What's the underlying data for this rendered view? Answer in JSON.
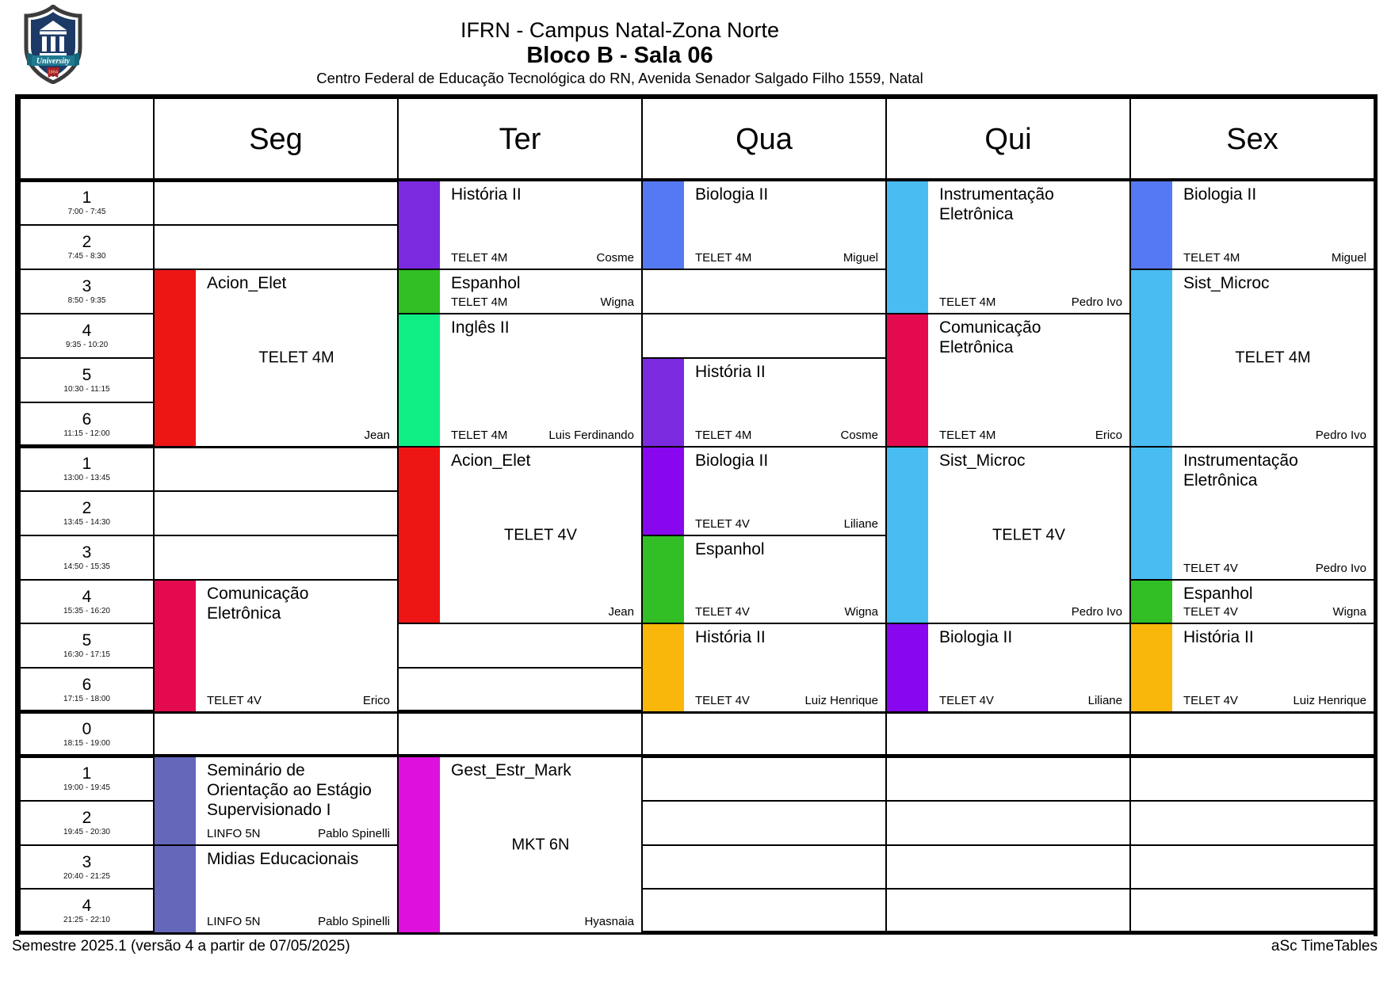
{
  "header": {
    "title": "IFRN - Campus Natal-Zona Norte",
    "subtitle": "Bloco B - Sala 06",
    "address": "Centro Federal de Educação Tecnológica do RN, Avenida Senador Salgado Filho 1559, Natal",
    "logo": {
      "banner": "University",
      "year": "1864"
    }
  },
  "footer": {
    "left": "Semestre 2025.1 (versão 4 a partir de 07/05/2025)",
    "right": "aSc TimeTables"
  },
  "timetable": {
    "days": [
      "Seg",
      "Ter",
      "Qua",
      "Qui",
      "Sex"
    ],
    "periods": [
      {
        "num": "1",
        "time": "7:00 - 7:45"
      },
      {
        "num": "2",
        "time": "7:45 - 8:30"
      },
      {
        "num": "3",
        "time": "8:50 - 9:35"
      },
      {
        "num": "4",
        "time": "9:35 - 10:20"
      },
      {
        "num": "5",
        "time": "10:30 - 11:15"
      },
      {
        "num": "6",
        "time": "11:15 - 12:00"
      },
      {
        "num": "1",
        "time": "13:00 - 13:45"
      },
      {
        "num": "2",
        "time": "13:45 - 14:30"
      },
      {
        "num": "3",
        "time": "14:50 - 15:35"
      },
      {
        "num": "4",
        "time": "15:35 - 16:20"
      },
      {
        "num": "5",
        "time": "16:30 - 17:15"
      },
      {
        "num": "6",
        "time": "17:15 - 18:00"
      },
      {
        "num": "0",
        "time": "18:15 - 19:00"
      },
      {
        "num": "1",
        "time": "19:00 - 19:45"
      },
      {
        "num": "2",
        "time": "19:45 - 20:30"
      },
      {
        "num": "3",
        "time": "20:40 - 21:25"
      },
      {
        "num": "4",
        "time": "21:25 - 22:10"
      }
    ],
    "colors": {
      "red": "#ee1515",
      "crimson": "#e40a4f",
      "slate": "#6567bb",
      "magenta": "#dd10dd",
      "purple": "#7b2ae0",
      "green": "#31bf25",
      "spring": "#0eee85",
      "royal": "#5579f2",
      "sky": "#49bcf2",
      "violet": "#8807ef",
      "amber": "#f8b70a"
    },
    "cards": [
      {
        "day": 0,
        "row": 2,
        "span": 4,
        "color": "red",
        "title": "Acion_Elet",
        "code": "TELET 4M",
        "teacher": "Jean",
        "layout": "center"
      },
      {
        "day": 0,
        "row": 9,
        "span": 3,
        "color": "crimson",
        "title": "Comunicação Eletrônica",
        "code": "TELET 4V",
        "teacher": "Erico",
        "layout": "bottom"
      },
      {
        "day": 0,
        "row": 13,
        "span": 2,
        "color": "slate",
        "title": "Seminário de Orientação ao Estágio Supervisionado I",
        "code": "LINFO 5N",
        "teacher": "Pablo Spinelli",
        "layout": "bottom"
      },
      {
        "day": 0,
        "row": 15,
        "span": 2,
        "color": "slate",
        "title": "Midias Educacionais",
        "code": "LINFO 5N",
        "teacher": "Pablo Spinelli",
        "layout": "bottom"
      },
      {
        "day": 1,
        "row": 0,
        "span": 2,
        "color": "purple",
        "title": "História II",
        "code": "TELET 4M",
        "teacher": "Cosme",
        "layout": "bottom"
      },
      {
        "day": 1,
        "row": 2,
        "span": 1,
        "color": "green",
        "title": "Espanhol",
        "code": "TELET 4M",
        "teacher": "Wigna",
        "layout": "bottom"
      },
      {
        "day": 1,
        "row": 3,
        "span": 3,
        "color": "spring",
        "title": "Inglês II",
        "code": "TELET 4M",
        "teacher": "Luis Ferdinando",
        "layout": "bottom"
      },
      {
        "day": 1,
        "row": 6,
        "span": 4,
        "color": "red",
        "title": "Acion_Elet",
        "code": "TELET 4V",
        "teacher": "Jean",
        "layout": "center"
      },
      {
        "day": 1,
        "row": 13,
        "span": 4,
        "color": "magenta",
        "title": "Gest_Estr_Mark",
        "code": "MKT 6N",
        "teacher": "Hyasnaia",
        "layout": "center"
      },
      {
        "day": 2,
        "row": 0,
        "span": 2,
        "color": "royal",
        "title": "Biologia II",
        "code": "TELET 4M",
        "teacher": "Miguel",
        "layout": "bottom"
      },
      {
        "day": 2,
        "row": 4,
        "span": 2,
        "color": "purple",
        "title": "História II",
        "code": "TELET 4M",
        "teacher": "Cosme",
        "layout": "bottom"
      },
      {
        "day": 2,
        "row": 6,
        "span": 2,
        "color": "violet",
        "title": "Biologia II",
        "code": "TELET 4V",
        "teacher": "Liliane",
        "layout": "bottom"
      },
      {
        "day": 2,
        "row": 8,
        "span": 2,
        "color": "green",
        "title": "Espanhol",
        "code": "TELET 4V",
        "teacher": "Wigna",
        "layout": "bottom"
      },
      {
        "day": 2,
        "row": 10,
        "span": 2,
        "color": "amber",
        "title": "História II",
        "code": "TELET 4V",
        "teacher": "Luiz Henrique",
        "layout": "bottom"
      },
      {
        "day": 3,
        "row": 0,
        "span": 3,
        "color": "sky",
        "title": "Instrumentação Eletrônica",
        "code": "TELET 4M",
        "teacher": "Pedro Ivo",
        "layout": "bottom"
      },
      {
        "day": 3,
        "row": 3,
        "span": 3,
        "color": "crimson",
        "title": "Comunicação Eletrônica",
        "code": "TELET 4M",
        "teacher": "Erico",
        "layout": "bottom"
      },
      {
        "day": 3,
        "row": 6,
        "span": 4,
        "color": "sky",
        "title": "Sist_Microc",
        "code": "TELET 4V",
        "teacher": "Pedro Ivo",
        "layout": "center"
      },
      {
        "day": 3,
        "row": 10,
        "span": 2,
        "color": "violet",
        "title": "Biologia II",
        "code": "TELET 4V",
        "teacher": "Liliane",
        "layout": "bottom"
      },
      {
        "day": 4,
        "row": 0,
        "span": 2,
        "color": "royal",
        "title": "Biologia II",
        "code": "TELET 4M",
        "teacher": "Miguel",
        "layout": "bottom"
      },
      {
        "day": 4,
        "row": 2,
        "span": 4,
        "color": "sky",
        "title": "Sist_Microc",
        "code": "TELET 4M",
        "teacher": "Pedro Ivo",
        "layout": "center"
      },
      {
        "day": 4,
        "row": 6,
        "span": 3,
        "color": "sky",
        "title": "Instrumentação Eletrônica",
        "code": "TELET 4V",
        "teacher": "Pedro Ivo",
        "layout": "bottom"
      },
      {
        "day": 4,
        "row": 9,
        "span": 1,
        "color": "green",
        "title": "Espanhol",
        "code": "TELET 4V",
        "teacher": "Wigna",
        "layout": "bottom"
      },
      {
        "day": 4,
        "row": 10,
        "span": 2,
        "color": "amber",
        "title": "História II",
        "code": "TELET 4V",
        "teacher": "Luiz Henrique",
        "layout": "bottom"
      }
    ]
  }
}
